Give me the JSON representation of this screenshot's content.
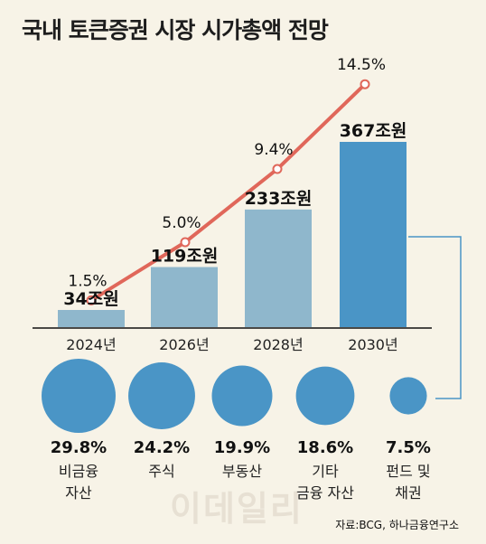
{
  "title": "국내 토큰증권 시장 시가총액 전망",
  "chart_data": [
    {
      "type": "bar",
      "categories": [
        "2024년",
        "2026년",
        "2028년",
        "2030년"
      ],
      "values": [
        34,
        119,
        233,
        367
      ],
      "value_labels": [
        "34조원",
        "119조원",
        "233조원",
        "367조원"
      ],
      "unit": "조원",
      "colors": [
        "#8fb7cc",
        "#8fb7cc",
        "#8fb7cc",
        "#4a95c6"
      ],
      "ylim": [
        0,
        400
      ]
    },
    {
      "type": "line",
      "categories": [
        "2024년",
        "2026년",
        "2028년",
        "2030년"
      ],
      "values": [
        1.5,
        5.0,
        9.4,
        14.5
      ],
      "value_labels": [
        "1.5%",
        "5.0%",
        "9.4%",
        "14.5%"
      ],
      "color": "#e0675a"
    },
    {
      "type": "bubble",
      "items": [
        {
          "name_lines": [
            "비금융",
            "자산"
          ],
          "value": 29.8,
          "value_label": "29.8%"
        },
        {
          "name_lines": [
            "주식",
            ""
          ],
          "value": 24.2,
          "value_label": "24.2%"
        },
        {
          "name_lines": [
            "부동산",
            ""
          ],
          "value": 19.9,
          "value_label": "19.9%"
        },
        {
          "name_lines": [
            "기타",
            "금융 자산"
          ],
          "value": 18.6,
          "value_label": "18.6%"
        },
        {
          "name_lines": [
            "펀드 및",
            "채권"
          ],
          "value": 7.5,
          "value_label": "7.5%"
        }
      ],
      "color": "#4a95c6"
    }
  ],
  "watermark": "이데일리",
  "source": "자료:BCG, 하나금융연구소"
}
